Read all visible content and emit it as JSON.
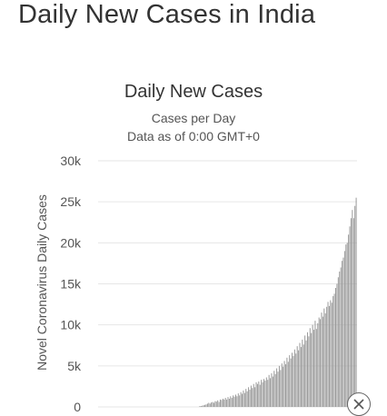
{
  "page": {
    "heading": "Daily New Cases in India"
  },
  "chart_data": {
    "type": "bar",
    "title": "Daily New Cases",
    "subtitle": "Cases per Day",
    "subtitle2": "Data as of 0:00 GMT+0",
    "ylabel": "Novel Coronavirus Daily Cases",
    "xlabel": "",
    "ylim": [
      0,
      30000
    ],
    "yticks": [
      0,
      5000,
      10000,
      15000,
      20000,
      25000,
      30000
    ],
    "ytick_labels": [
      "0",
      "5k",
      "10k",
      "15k",
      "20k",
      "25k",
      "30k"
    ],
    "grid": true,
    "bar_color": "#999999",
    "values": [
      0,
      0,
      0,
      0,
      0,
      0,
      0,
      0,
      0,
      0,
      0,
      0,
      0,
      0,
      0,
      0,
      0,
      0,
      0,
      0,
      0,
      0,
      0,
      0,
      0,
      0,
      0,
      0,
      0,
      0,
      0,
      0,
      0,
      0,
      0,
      0,
      0,
      0,
      0,
      0,
      0,
      0,
      0,
      0,
      0,
      0,
      0,
      0,
      0,
      0,
      0,
      0,
      0,
      0,
      0,
      0,
      0,
      0,
      0,
      0,
      0,
      0,
      0,
      0,
      0,
      0,
      0,
      0,
      0,
      0,
      0,
      0,
      0,
      0,
      0,
      0,
      0,
      0,
      0,
      100,
      100,
      150,
      200,
      250,
      300,
      400,
      500,
      400,
      550,
      600,
      500,
      700,
      650,
      800,
      600,
      900,
      850,
      1000,
      900,
      1100,
      900,
      1200,
      1000,
      1300,
      1100,
      1400,
      1250,
      1500,
      1300,
      1650,
      1400,
      1800,
      1600,
      2000,
      1700,
      2200,
      1900,
      2400,
      2100,
      2600,
      2300,
      2800,
      2400,
      3000,
      2800,
      3100,
      2700,
      3300,
      3000,
      3400,
      3200,
      3600,
      3300,
      3900,
      3500,
      4100,
      3700,
      4400,
      4000,
      4700,
      4300,
      5000,
      4500,
      5300,
      4900,
      5600,
      5200,
      6000,
      5500,
      6300,
      5900,
      6600,
      6200,
      7000,
      6500,
      7400,
      6900,
      7800,
      7300,
      8200,
      7600,
      8700,
      8100,
      9100,
      8600,
      9600,
      9000,
      10000,
      9400,
      10500,
      9500,
      10200,
      10900,
      10700,
      11500,
      11000,
      12000,
      11400,
      12200,
      12800,
      12300,
      13000,
      12700,
      13500,
      13800,
      14500,
      15000,
      15800,
      16500,
      17000,
      17800,
      18200,
      19000,
      19800,
      20000,
      21000,
      22000,
      23000,
      24000,
      23000,
      24500,
      25500
    ]
  },
  "controls": {
    "close_icon": "close-icon"
  }
}
